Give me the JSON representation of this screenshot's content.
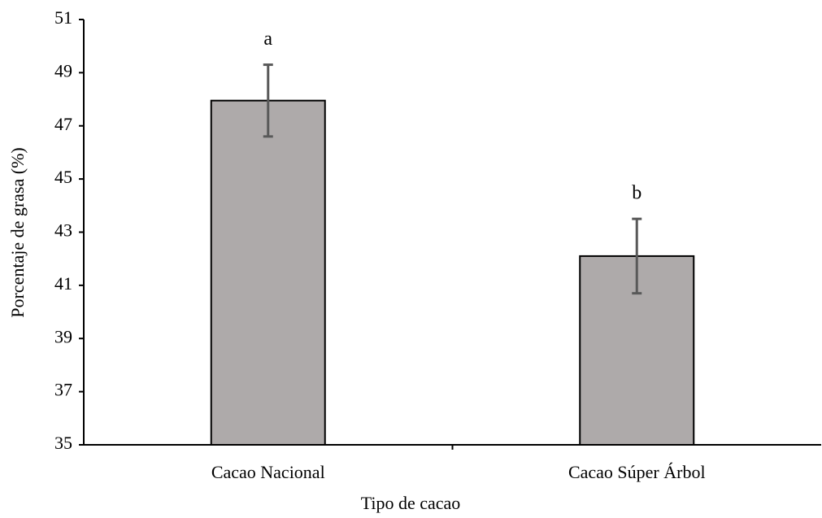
{
  "chart_data": {
    "type": "bar",
    "x_label": "Tipo de cacao",
    "y_label": "Porcentaje de grasa (%)",
    "categories": [
      "Cacao Nacional",
      "Cacao Súper Árbol"
    ],
    "values": [
      47.95,
      42.1
    ],
    "errors": [
      1.35,
      1.4
    ],
    "annotations": [
      "a",
      "b"
    ],
    "color": "#aeaaaa",
    "error_color": "#595959",
    "ylim": [
      35,
      51
    ],
    "yticks": [
      35,
      37,
      39,
      41,
      43,
      45,
      47,
      49,
      51
    ],
    "grid": false
  }
}
